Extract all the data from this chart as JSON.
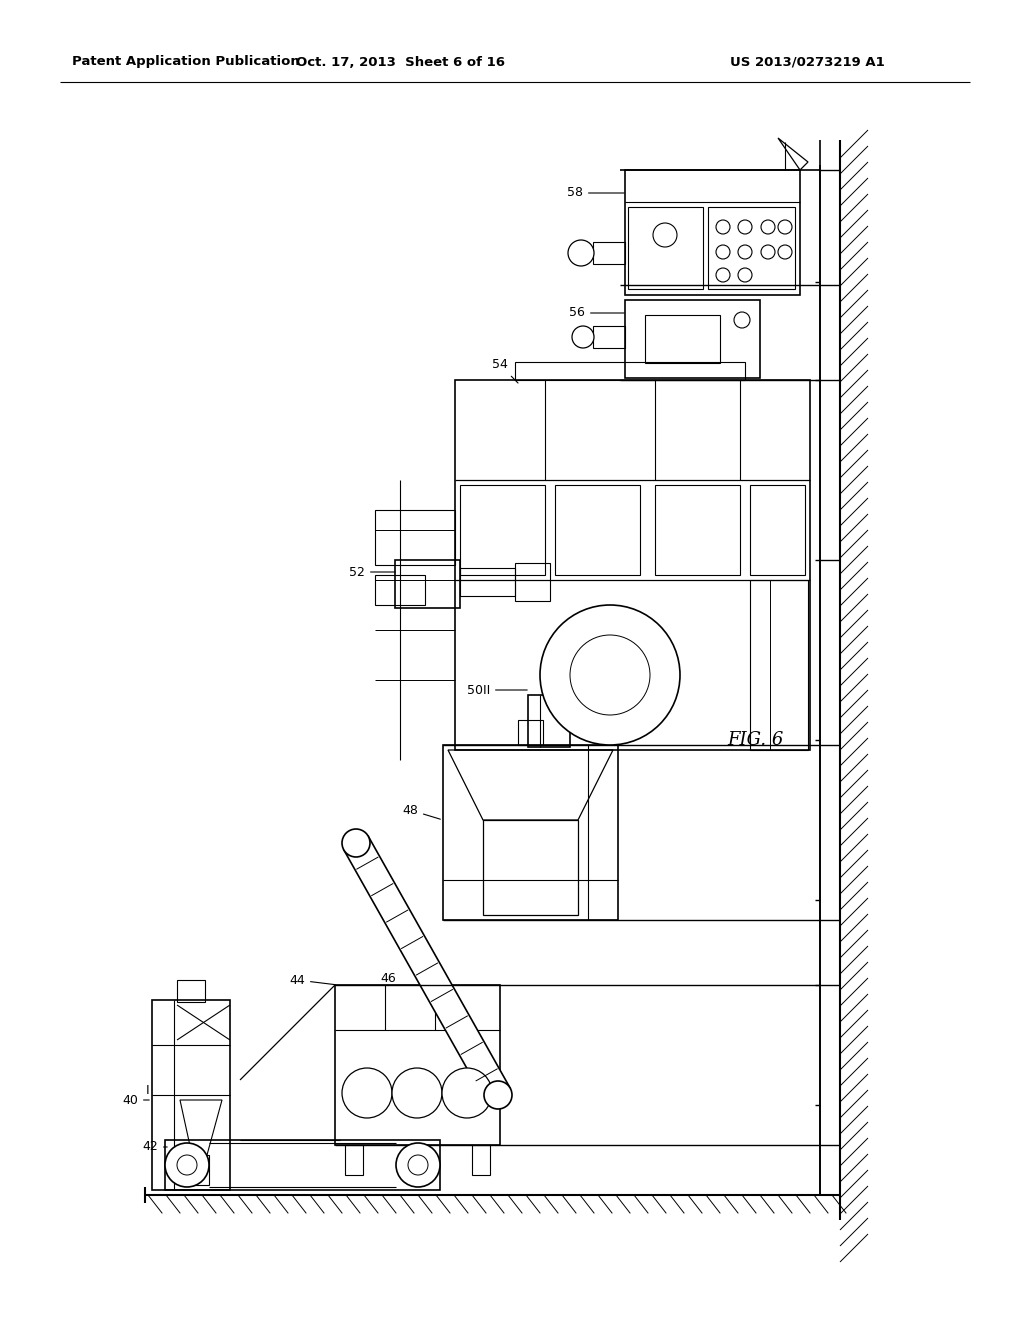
{
  "bg_color": "#ffffff",
  "header_left": "Patent Application Publication",
  "header_mid": "Oct. 17, 2013  Sheet 6 of 16",
  "header_right": "US 2013/0273219 A1",
  "fig_label": "FIG. 6",
  "line_color": "#000000",
  "header_fontsize": 9.5,
  "label_fontsize": 9,
  "fig_label_fontsize": 13
}
